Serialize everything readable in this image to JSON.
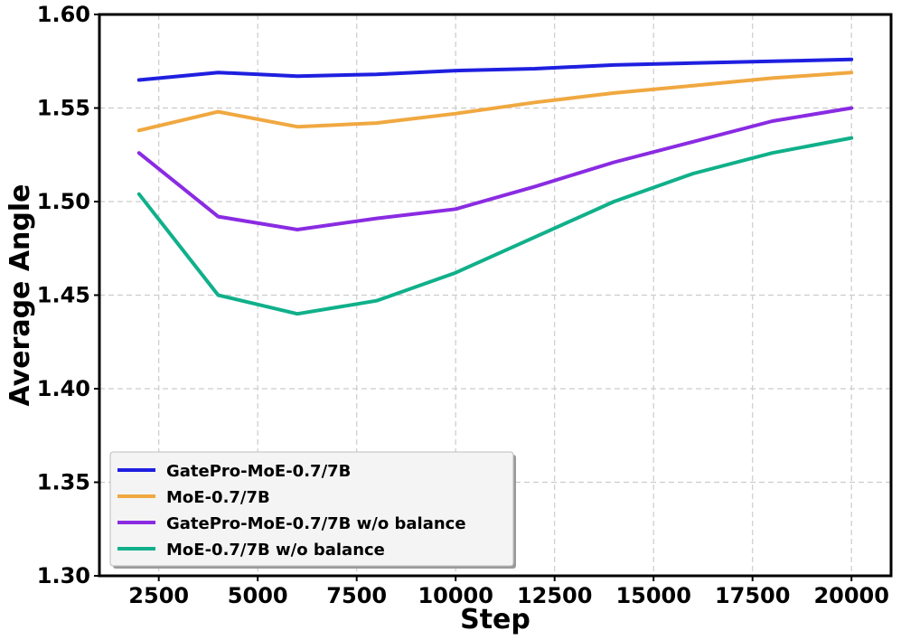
{
  "chart_data": {
    "type": "line",
    "title": "",
    "xlabel": "Step",
    "ylabel": "Average Angle",
    "xlim": [
      1000,
      21000
    ],
    "ylim": [
      1.3,
      1.6
    ],
    "xticks": [
      2500,
      5000,
      7500,
      10000,
      12500,
      15000,
      17500,
      20000
    ],
    "xtick_labels": [
      "2500",
      "5000",
      "7500",
      "10000",
      "12500",
      "15000",
      "17500",
      "20000"
    ],
    "yticks": [
      1.3,
      1.35,
      1.4,
      1.45,
      1.5,
      1.55,
      1.6
    ],
    "ytick_labels": [
      "1.30",
      "1.35",
      "1.40",
      "1.45",
      "1.50",
      "1.55",
      "1.60"
    ],
    "grid": true,
    "legend_position": "bottom-left",
    "x": [
      2000,
      4000,
      6000,
      8000,
      10000,
      12000,
      14000,
      16000,
      18000,
      20000
    ],
    "series": [
      {
        "name": "GatePro-MoE-0.7/7B",
        "color": "#1f1fe0",
        "values": [
          1.565,
          1.569,
          1.567,
          1.568,
          1.57,
          1.571,
          1.573,
          1.574,
          1.575,
          1.576
        ]
      },
      {
        "name": "MoE-0.7/7B",
        "color": "#f0a840",
        "values": [
          1.538,
          1.548,
          1.54,
          1.542,
          1.547,
          1.553,
          1.558,
          1.562,
          1.566,
          1.569
        ]
      },
      {
        "name": "GatePro-MoE-0.7/7B w/o balance",
        "color": "#8a2be2",
        "values": [
          1.526,
          1.492,
          1.485,
          1.491,
          1.496,
          1.508,
          1.521,
          1.532,
          1.543,
          1.55
        ]
      },
      {
        "name": "MoE-0.7/7B w/o balance",
        "color": "#10b08a",
        "values": [
          1.504,
          1.45,
          1.44,
          1.447,
          1.462,
          1.481,
          1.5,
          1.515,
          1.526,
          1.534
        ]
      }
    ]
  }
}
